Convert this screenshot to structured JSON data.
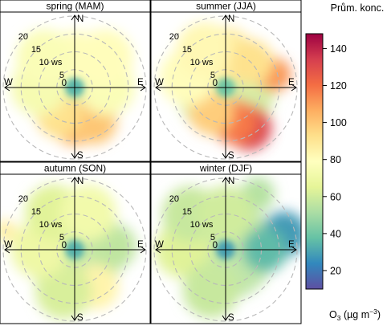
{
  "chart_data": {
    "type": "heatmap",
    "chart_kind": "polar pollution rose (polarPlot), 2x2 panels by season",
    "colorbar": {
      "title": "Prům. konc.",
      "unit_main": "O",
      "unit_sub": "3",
      "unit_tail": " (µg m",
      "unit_sup": "−3",
      "unit_close": ")",
      "range": [
        10,
        148
      ],
      "ticks": [
        20,
        40,
        60,
        80,
        100,
        120,
        140
      ],
      "scale": "spectral (blue low → red high)",
      "colors": [
        "#5E4FA2",
        "#3288BD",
        "#66C2A5",
        "#ABDDA4",
        "#E6F598",
        "#FFFFBF",
        "#FEE08B",
        "#FDAE61",
        "#F46D43",
        "#D53E4F",
        "#9E0142"
      ]
    },
    "rings": {
      "ws_values": [
        5,
        10,
        15,
        20
      ],
      "labels": [
        "5",
        "10 ws",
        "15",
        "20"
      ],
      "style": "dashed grey"
    },
    "axes_labels": {
      "north": "N",
      "south": "S",
      "east": "E",
      "west": "W",
      "center": "0"
    },
    "panels": [
      {
        "title": "spring (MAM)",
        "center_value": 35,
        "blobs": [
          {
            "dir": 180,
            "ws": 10,
            "value": 104,
            "size": 4
          },
          {
            "dir": 150,
            "ws": 11,
            "value": 100,
            "size": 4
          },
          {
            "dir": 210,
            "ws": 9,
            "value": 92,
            "size": 4
          },
          {
            "dir": 0,
            "ws": 8,
            "value": 80,
            "size": 5
          },
          {
            "dir": 270,
            "ws": 10,
            "value": 74,
            "size": 5
          },
          {
            "dir": 90,
            "ws": 9,
            "value": 76,
            "size": 5
          },
          {
            "dir": 315,
            "ws": 12,
            "value": 76,
            "size": 5
          },
          {
            "dir": 45,
            "ws": 12,
            "value": 80,
            "size": 5
          }
        ]
      },
      {
        "title": "summer (JJA)",
        "center_value": 40,
        "blobs": [
          {
            "dir": 150,
            "ws": 13,
            "value": 132,
            "size": 4
          },
          {
            "dir": 165,
            "ws": 10,
            "value": 118,
            "size": 4
          },
          {
            "dir": 75,
            "ws": 14,
            "value": 112,
            "size": 3
          },
          {
            "dir": 210,
            "ws": 8,
            "value": 98,
            "size": 4
          },
          {
            "dir": 0,
            "ws": 9,
            "value": 88,
            "size": 5
          },
          {
            "dir": 285,
            "ws": 11,
            "value": 80,
            "size": 5
          },
          {
            "dir": 330,
            "ws": 12,
            "value": 82,
            "size": 5
          },
          {
            "dir": 45,
            "ws": 10,
            "value": 92,
            "size": 4
          }
        ]
      },
      {
        "title": "autumn (SON)",
        "center_value": 34,
        "blobs": [
          {
            "dir": 85,
            "ws": 11,
            "value": 56,
            "size": 4
          },
          {
            "dir": 150,
            "ws": 12,
            "value": 84,
            "size": 4
          },
          {
            "dir": 195,
            "ws": 12,
            "value": 62,
            "size": 5
          },
          {
            "dir": 270,
            "ws": 10,
            "value": 70,
            "size": 5
          },
          {
            "dir": 330,
            "ws": 12,
            "value": 64,
            "size": 5
          },
          {
            "dir": 20,
            "ws": 11,
            "value": 72,
            "size": 5
          },
          {
            "dir": 285,
            "ws": 20,
            "value": 86,
            "size": 2
          }
        ]
      },
      {
        "title": "winter (DJF)",
        "center_value": 30,
        "blobs": [
          {
            "dir": 75,
            "ws": 17,
            "value": 28,
            "size": 4
          },
          {
            "dir": 90,
            "ws": 11,
            "value": 36,
            "size": 4
          },
          {
            "dir": 30,
            "ws": 18,
            "value": 54,
            "size": 3
          },
          {
            "dir": 270,
            "ws": 12,
            "value": 64,
            "size": 5
          },
          {
            "dir": 315,
            "ws": 14,
            "value": 58,
            "size": 5
          },
          {
            "dir": 200,
            "ws": 12,
            "value": 58,
            "size": 5
          },
          {
            "dir": 0,
            "ws": 10,
            "value": 60,
            "size": 5
          }
        ]
      }
    ]
  }
}
